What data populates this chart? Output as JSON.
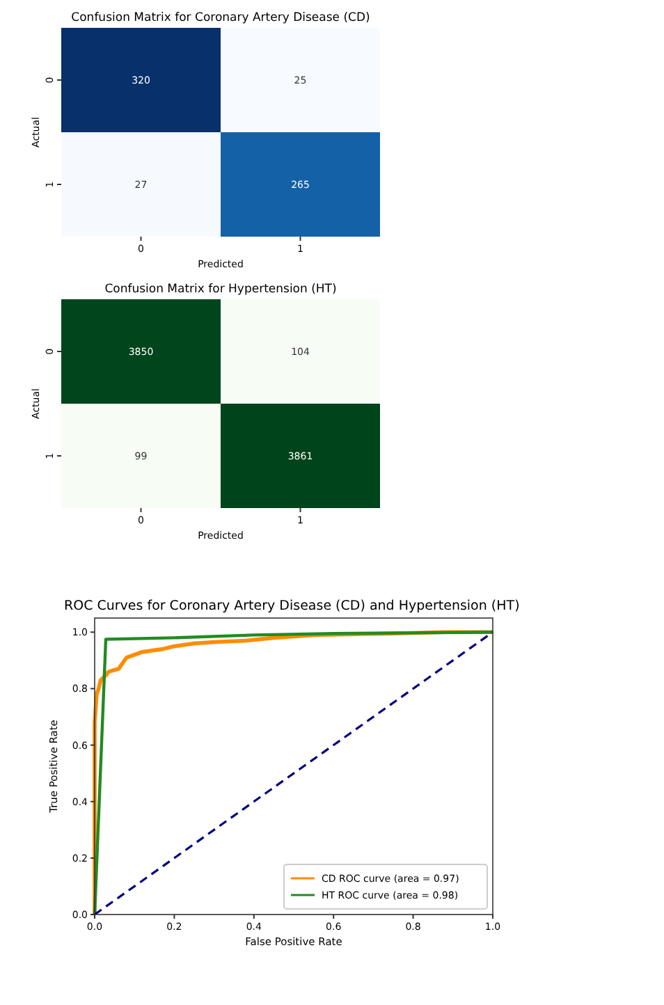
{
  "chart_data": [
    {
      "type": "heatmap",
      "title": "Confusion Matrix for Coronary Artery Disease (CD)",
      "xlabel": "Predicted",
      "ylabel": "Actual",
      "categories": [
        "0",
        "1"
      ],
      "y_categories": [
        "0",
        "1"
      ],
      "cells": [
        [
          320,
          25
        ],
        [
          27,
          265
        ]
      ],
      "data_labels": true,
      "colors": [
        "#f7fbff",
        "#deebf7",
        "#c6dbef",
        "#9ecae1",
        "#6baed6",
        "#4292c6",
        "#2171b5",
        "#08519c",
        "#08306b"
      ]
    },
    {
      "type": "heatmap",
      "title": "Confusion Matrix for Hypertension (HT)",
      "xlabel": "Predicted",
      "ylabel": "Actual",
      "categories": [
        "0",
        "1"
      ],
      "y_categories": [
        "0",
        "1"
      ],
      "cells": [
        [
          3850,
          104
        ],
        [
          99,
          3861
        ]
      ],
      "data_labels": true,
      "colors": [
        "#f7fcf5",
        "#e5f5e0",
        "#c7e9c0",
        "#a1d99b",
        "#74c476",
        "#41ab5d",
        "#238b45",
        "#006d2c",
        "#00441b"
      ]
    },
    {
      "type": "line",
      "title": "ROC Curves for Coronary Artery Disease (CD) and Hypertension (HT)",
      "xlabel": "False Positive Rate",
      "ylabel": "True Positive Rate",
      "xlim": [
        0,
        1
      ],
      "ylim": [
        0,
        1.05
      ],
      "xticks": [
        {
          "value": 0,
          "label": "0.0"
        },
        {
          "value": 0.2,
          "label": "0.2"
        },
        {
          "value": 0.4,
          "label": "0.4"
        },
        {
          "value": 0.6,
          "label": "0.6"
        },
        {
          "value": 0.8,
          "label": "0.8"
        },
        {
          "value": 1,
          "label": "1.0"
        }
      ],
      "yticks": [
        {
          "value": 0,
          "label": "0.0"
        },
        {
          "value": 0.2,
          "label": "0.2"
        },
        {
          "value": 0.4,
          "label": "0.4"
        },
        {
          "value": 0.6,
          "label": "0.6"
        },
        {
          "value": 0.8,
          "label": "0.8"
        },
        {
          "value": 1,
          "label": "1.0"
        }
      ],
      "grid": false,
      "legend": "bottom right",
      "series": [
        {
          "name": "CD ROC curve (area = 0.97)",
          "color": "#ff8c00",
          "x": [
            0,
            0,
            0.005,
            0.01,
            0.015,
            0.03,
            0.035,
            0.06,
            0.07,
            0.08,
            0.1,
            0.12,
            0.17,
            0.2,
            0.25,
            0.3,
            0.38,
            0.45,
            0.55,
            0.75,
            0.88,
            1
          ],
          "values": [
            0,
            0.68,
            0.78,
            0.8,
            0.83,
            0.85,
            0.86,
            0.87,
            0.89,
            0.91,
            0.92,
            0.93,
            0.94,
            0.95,
            0.96,
            0.965,
            0.97,
            0.98,
            0.99,
            0.995,
            1,
            1
          ]
        },
        {
          "name": "HT ROC curve (area = 0.98)",
          "color": "#228b22",
          "x": [
            0,
            0.028,
            0.2,
            0.4,
            0.6,
            1
          ],
          "values": [
            0,
            0.975,
            0.98,
            0.99,
            0.995,
            1
          ]
        },
        {
          "color": "#000080",
          "line_style": "dashed",
          "x": [
            0,
            1
          ],
          "values": [
            0,
            1
          ]
        }
      ]
    }
  ]
}
